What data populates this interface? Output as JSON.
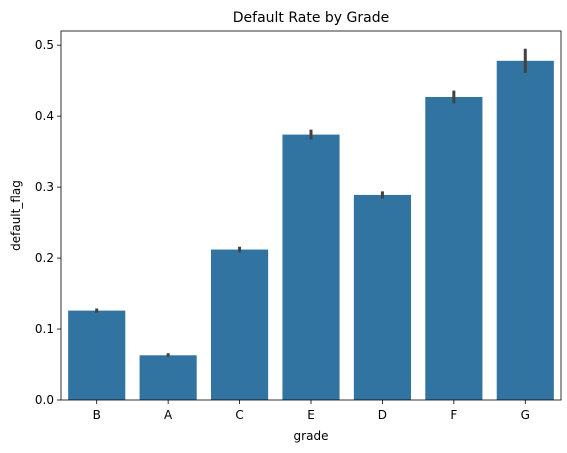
{
  "chart_data": {
    "type": "bar",
    "title": "Default Rate by Grade",
    "xlabel": "grade",
    "ylabel": "default_flag",
    "categories": [
      "B",
      "A",
      "C",
      "E",
      "D",
      "F",
      "G"
    ],
    "values": [
      0.126,
      0.063,
      0.212,
      0.374,
      0.289,
      0.427,
      0.478
    ],
    "error_low": [
      0.123,
      0.061,
      0.208,
      0.367,
      0.284,
      0.418,
      0.461
    ],
    "error_high": [
      0.129,
      0.066,
      0.216,
      0.381,
      0.294,
      0.436,
      0.495
    ],
    "yticks": [
      0.0,
      0.1,
      0.2,
      0.3,
      0.4,
      0.5
    ],
    "ytick_labels": [
      "0.0",
      "0.1",
      "0.2",
      "0.3",
      "0.4",
      "0.5"
    ],
    "ylim": [
      0,
      0.52
    ],
    "grid": false,
    "bar_color": "#3274a1",
    "error_color": "#424242"
  }
}
